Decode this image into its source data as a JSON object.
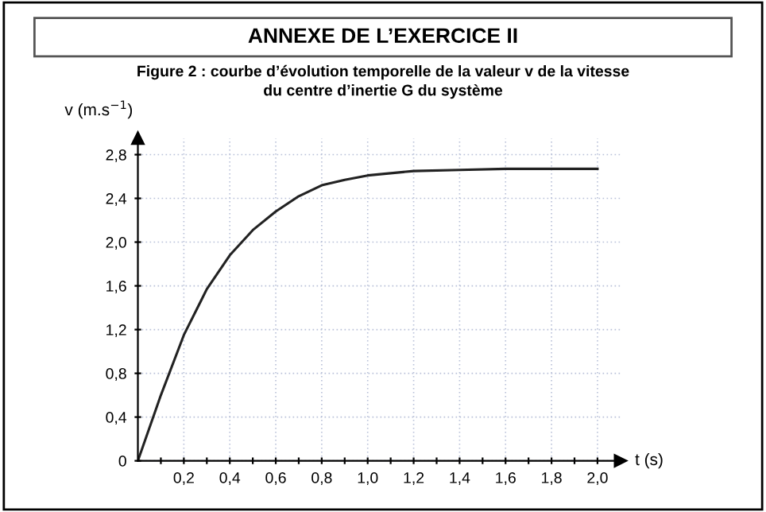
{
  "chart_data": {
    "type": "line",
    "title": "ANNEXE DE L’EXERCICE II",
    "subtitle": "Figure 2 : courbe d’évolution temporelle de la valeur v de la vitesse\ndu centre d’inertie G du système",
    "xlabel": "t (s)",
    "ylabel": "v (m.s$^{−1}$)",
    "x": [
      0,
      0.1,
      0.2,
      0.3,
      0.4,
      0.5,
      0.6,
      0.7,
      0.8,
      0.9,
      1.0,
      1.2,
      1.4,
      1.6,
      1.8,
      2.0
    ],
    "series": [
      {
        "color": "#222222",
        "values": [
          0,
          0.6,
          1.15,
          1.57,
          1.88,
          2.11,
          2.28,
          2.42,
          2.52,
          2.57,
          2.61,
          2.65,
          2.66,
          2.67,
          2.67,
          2.67
        ]
      }
    ],
    "xlim": [
      0,
      2.1
    ],
    "ylim": [
      0,
      2.95
    ],
    "xticks": [
      {
        "value": 0.1,
        "label": null
      },
      {
        "value": 0.2,
        "label": "0,2"
      },
      {
        "value": 0.3,
        "label": null
      },
      {
        "value": 0.4,
        "label": "0,4"
      },
      {
        "value": 0.5,
        "label": null
      },
      {
        "value": 0.6,
        "label": "0,6"
      },
      {
        "value": 0.7,
        "label": null
      },
      {
        "value": 0.8,
        "label": "0,8"
      },
      {
        "value": 0.9,
        "label": null
      },
      {
        "value": 1.0,
        "label": "1,0"
      },
      {
        "value": 1.1,
        "label": null
      },
      {
        "value": 1.2,
        "label": "1,2"
      },
      {
        "value": 1.3,
        "label": null
      },
      {
        "value": 1.4,
        "label": "1,4"
      },
      {
        "value": 1.5,
        "label": null
      },
      {
        "value": 1.6,
        "label": "1,6"
      },
      {
        "value": 1.7,
        "label": null
      },
      {
        "value": 1.8,
        "label": "1,8"
      },
      {
        "value": 1.9,
        "label": null
      },
      {
        "value": 2.0,
        "label": "2,0"
      }
    ],
    "yticks": [
      0,
      {
        "value": 0.4,
        "label": "0,4"
      },
      {
        "value": 0.8,
        "label": "0,8"
      },
      {
        "value": 1.2,
        "label": "1,2"
      },
      {
        "value": 1.6,
        "label": "1,6"
      },
      {
        "value": 2.0,
        "label": "2,0"
      },
      {
        "value": 2.4,
        "label": "2,4"
      },
      {
        "value": 2.8,
        "label": "2,8"
      }
    ],
    "grid": true,
    "marker": "none",
    "line_style": "solid"
  }
}
